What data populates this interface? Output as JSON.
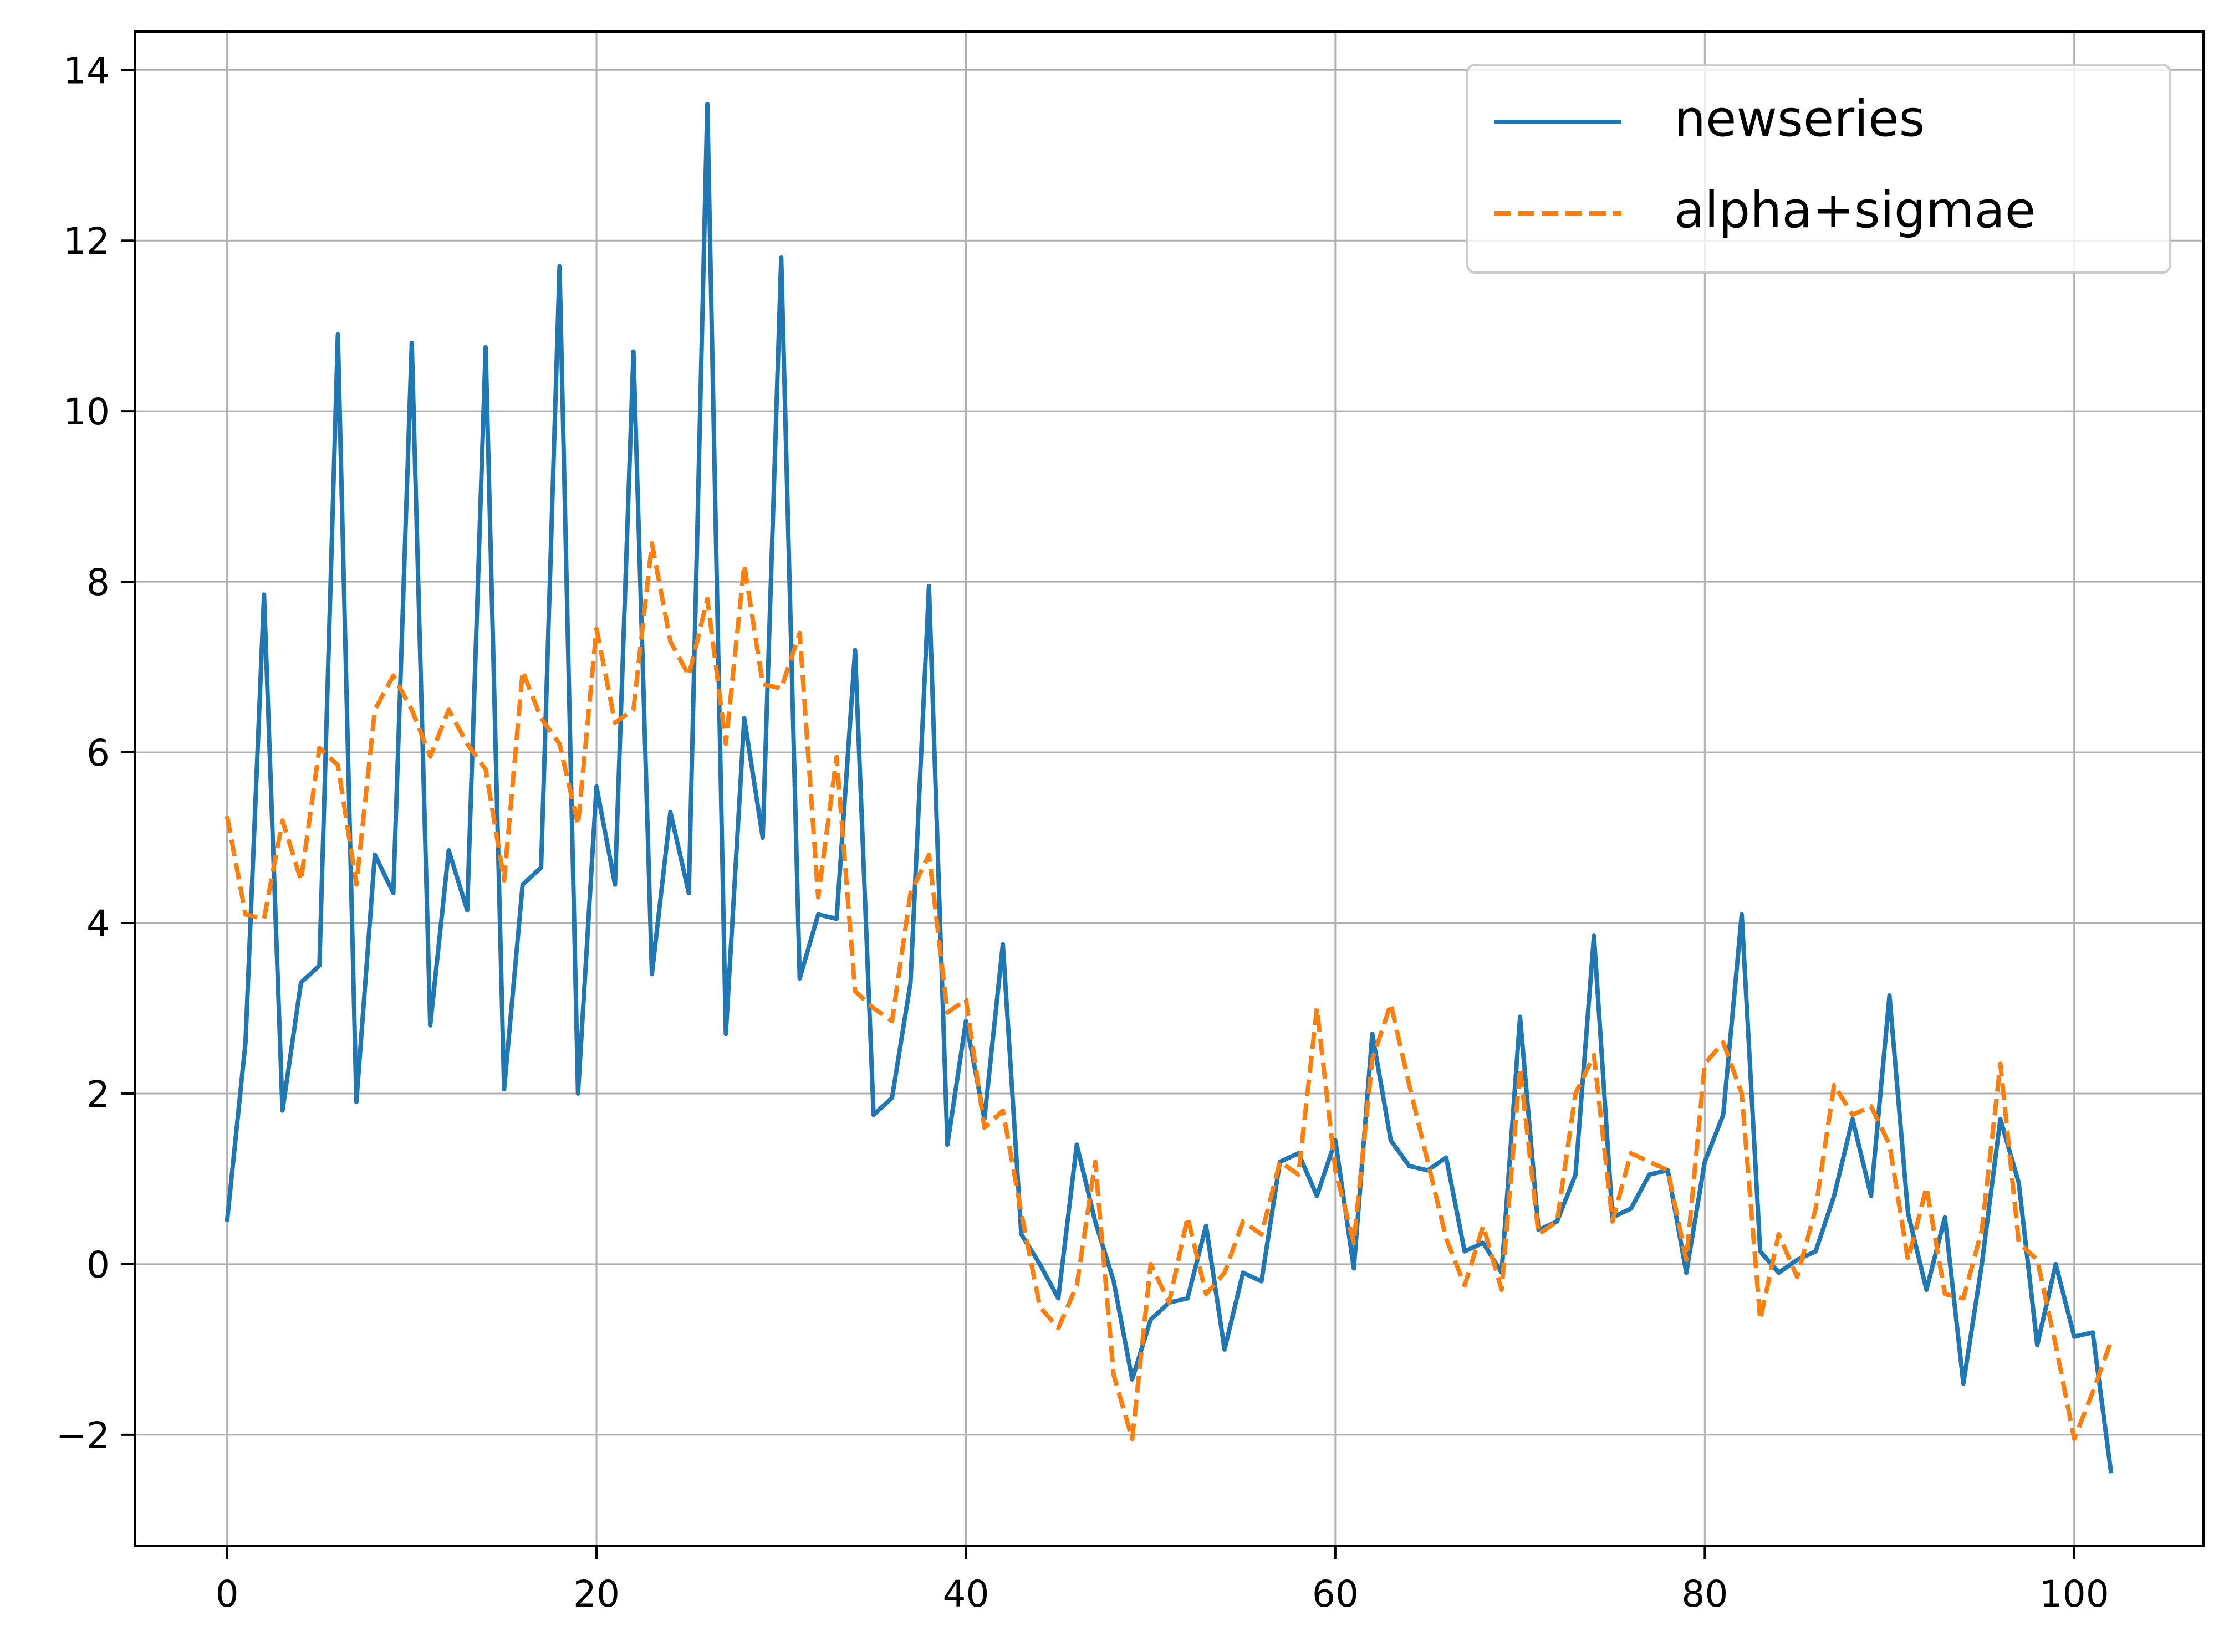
{
  "chart_data": {
    "type": "line",
    "title": "",
    "xlabel": "",
    "ylabel": "",
    "xlim": [
      -5,
      107
    ],
    "ylim": [
      -3.3,
      14.45
    ],
    "xticks": [
      0,
      20,
      40,
      60,
      80,
      100
    ],
    "yticks": [
      -2,
      0,
      2,
      4,
      6,
      8,
      10,
      12,
      14
    ],
    "xtick_labels": [
      "0",
      "20",
      "40",
      "60",
      "80",
      "100"
    ],
    "ytick_labels": [
      "−2",
      "0",
      "2",
      "4",
      "6",
      "8",
      "10",
      "12",
      "14"
    ],
    "grid": true,
    "legend_position": "top-right",
    "series": [
      {
        "name": "newseries",
        "color": "#1f77b4",
        "line_style": "solid",
        "values": [
          0.5,
          2.6,
          7.85,
          1.8,
          3.3,
          3.5,
          10.9,
          1.9,
          4.8,
          4.35,
          10.8,
          2.8,
          4.85,
          4.15,
          10.75,
          2.05,
          4.45,
          4.65,
          11.7,
          2.0,
          5.6,
          4.45,
          10.7,
          3.4,
          5.3,
          4.35,
          13.6,
          2.7,
          6.4,
          5.0,
          11.8,
          3.35,
          4.1,
          4.05,
          7.2,
          1.75,
          1.95,
          3.3,
          7.95,
          1.4,
          2.85,
          1.7,
          3.75,
          0.35,
          0.0,
          -0.4,
          1.4,
          0.5,
          -0.2,
          -1.35,
          -0.65,
          -0.45,
          -0.4,
          0.45,
          -1.0,
          -0.1,
          -0.2,
          1.2,
          1.3,
          0.8,
          1.45,
          -0.05,
          2.7,
          1.45,
          1.15,
          1.1,
          1.25,
          0.15,
          0.25,
          -0.1,
          2.9,
          0.4,
          0.5,
          1.05,
          3.85,
          0.55,
          0.65,
          1.05,
          1.1,
          -0.1,
          1.2,
          1.75,
          4.1,
          0.15,
          -0.1,
          0.05,
          0.15,
          0.8,
          1.7,
          0.8,
          3.15,
          0.6,
          -0.3,
          0.55,
          -1.4,
          0.0,
          1.7,
          0.95,
          -0.95,
          0.0,
          -0.85,
          -0.8,
          -2.45
        ]
      },
      {
        "name": "alpha+sigmae",
        "color": "#ff7f0e",
        "line_style": "dashed",
        "values": [
          5.25,
          4.1,
          4.05,
          5.2,
          4.5,
          6.05,
          5.85,
          4.45,
          6.5,
          6.9,
          6.5,
          5.95,
          6.5,
          6.1,
          5.8,
          4.5,
          6.95,
          6.4,
          6.1,
          5.15,
          7.45,
          6.35,
          6.5,
          8.45,
          7.3,
          6.9,
          7.8,
          6.1,
          8.2,
          6.8,
          6.75,
          7.4,
          4.3,
          5.95,
          3.2,
          3.0,
          2.85,
          4.35,
          4.8,
          2.95,
          3.1,
          1.6,
          1.8,
          0.6,
          -0.5,
          -0.75,
          -0.25,
          1.2,
          -1.3,
          -2.05,
          0.0,
          -0.45,
          0.55,
          -0.35,
          -0.1,
          0.5,
          0.35,
          1.2,
          1.05,
          3.0,
          1.1,
          0.25,
          2.4,
          3.05,
          2.1,
          1.2,
          0.3,
          -0.25,
          0.45,
          -0.3,
          2.3,
          0.35,
          0.5,
          2.0,
          2.45,
          0.5,
          1.3,
          1.2,
          1.1,
          0.05,
          2.35,
          2.6,
          2.0,
          -0.65,
          0.35,
          -0.15,
          0.65,
          2.1,
          1.75,
          1.85,
          1.4,
          0.05,
          0.9,
          -0.35,
          -0.4,
          0.4,
          2.35,
          0.25,
          0.05,
          -0.95,
          -2.05,
          -1.5,
          -0.9
        ]
      }
    ]
  }
}
